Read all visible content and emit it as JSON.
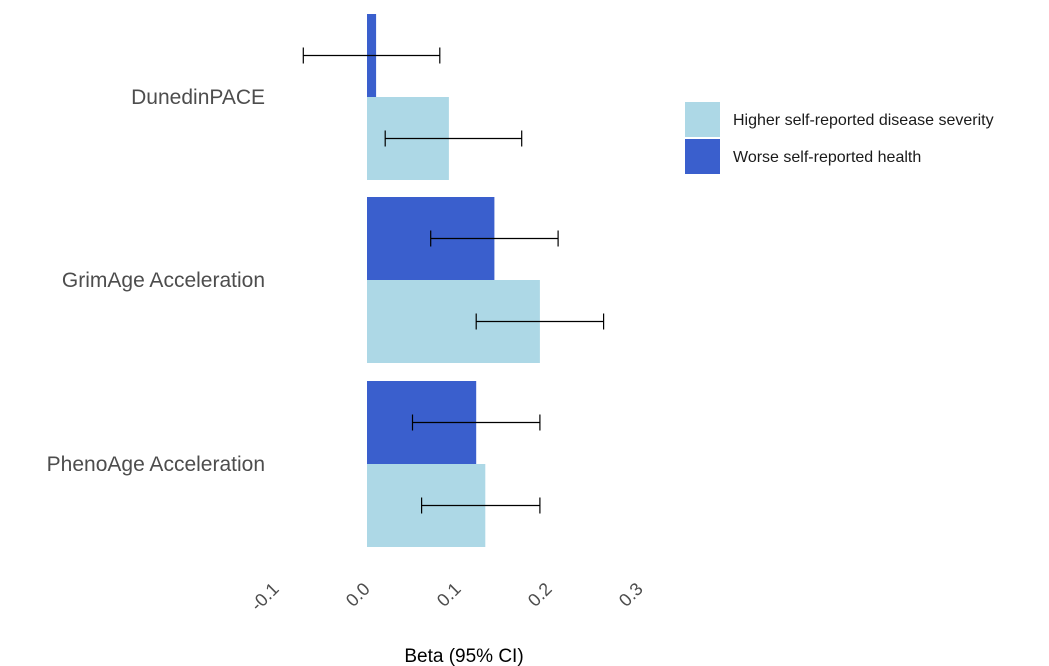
{
  "chart_data": {
    "type": "bar",
    "orientation": "horizontal",
    "categories": [
      "DunedinPACE",
      "GrimAge Acceleration",
      "PhenoAge Acceleration"
    ],
    "series": [
      {
        "name": "Worse self-reported health",
        "color": "#3a5fcd",
        "values": [
          0.01,
          0.14,
          0.12
        ],
        "ci_low": [
          -0.07,
          0.07,
          0.05
        ],
        "ci_high": [
          0.08,
          0.21,
          0.19
        ]
      },
      {
        "name": "Higher self-reported disease severity",
        "color": "#add8e6",
        "values": [
          0.09,
          0.19,
          0.13
        ],
        "ci_low": [
          0.02,
          0.12,
          0.06
        ],
        "ci_high": [
          0.17,
          0.26,
          0.19
        ]
      }
    ],
    "xlabel": "Beta (95% CI)",
    "ylabel": "",
    "xlim": [
      -0.1,
      0.3
    ],
    "xticks": [
      "-0.1",
      "0.0",
      "0.1",
      "0.2",
      "0.3"
    ],
    "grid": false,
    "legend": {
      "position": "right",
      "entries": [
        "Higher self-reported disease severity",
        "Worse self-reported health"
      ]
    }
  }
}
